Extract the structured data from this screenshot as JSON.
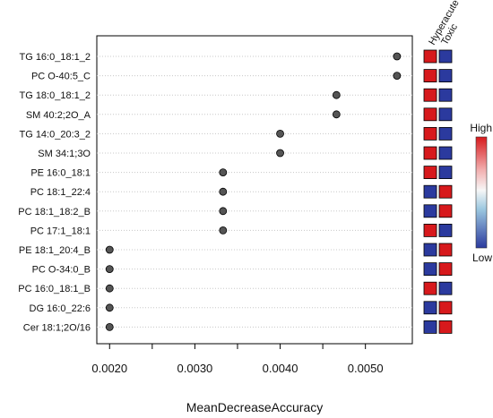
{
  "chart_data": {
    "type": "scatter",
    "subtype": "dot-plot-variable-importance",
    "xlabel": "MeanDecreaseAccuracy",
    "ylabel": "",
    "xlim": [
      0.00185,
      0.00555
    ],
    "x_ticks": [
      0.002,
      0.003,
      0.004,
      0.005
    ],
    "x_tick_labels": [
      "0.0020",
      "0.0030",
      "0.0040",
      "0.0050"
    ],
    "grid": "horizontal dashed lines per feature",
    "point_color": "#555555",
    "features": [
      {
        "label": "TG 16:0_18:1_2",
        "value": 0.00537
      },
      {
        "label": "PC O-40:5_C",
        "value": 0.00537
      },
      {
        "label": "TG 18:0_18:1_2",
        "value": 0.00466
      },
      {
        "label": "SM 40:2;2O_A",
        "value": 0.00466
      },
      {
        "label": "TG 14:0_20:3_2",
        "value": 0.004
      },
      {
        "label": "SM 34:1;3O",
        "value": 0.004
      },
      {
        "label": "PE 16:0_18:1",
        "value": 0.00333
      },
      {
        "label": "PC 18:1_22:4",
        "value": 0.00333
      },
      {
        "label": "PC 18:1_18:2_B",
        "value": 0.00333
      },
      {
        "label": "PC 17:1_18:1",
        "value": 0.00333
      },
      {
        "label": "PE 18:1_20:4_B",
        "value": 0.002
      },
      {
        "label": "PC O-34:0_B",
        "value": 0.002
      },
      {
        "label": "PC 16:0_18:1_B",
        "value": 0.002
      },
      {
        "label": "DG 16:0_22:6",
        "value": 0.002
      },
      {
        "label": "Cer 18:1;2O/16",
        "value": 0.002
      }
    ],
    "heatmap": {
      "columns": [
        "Hyperacute",
        "Toxic"
      ],
      "levels": [
        [
          "high",
          "low"
        ],
        [
          "high",
          "low"
        ],
        [
          "high",
          "low"
        ],
        [
          "high",
          "low"
        ],
        [
          "high",
          "low"
        ],
        [
          "high",
          "low"
        ],
        [
          "high",
          "low"
        ],
        [
          "low",
          "high"
        ],
        [
          "low",
          "high"
        ],
        [
          "high",
          "low"
        ],
        [
          "low",
          "high"
        ],
        [
          "low",
          "high"
        ],
        [
          "high",
          "low"
        ],
        [
          "low",
          "high"
        ],
        [
          "low",
          "high"
        ]
      ],
      "high_color": "#d7191c",
      "low_color": "#2b3a9e"
    },
    "colorbar": {
      "high_label": "High",
      "low_label": "Low",
      "stops": [
        "#d7191c",
        "#f5e1e1",
        "#e6f2f5",
        "#2c7bb6",
        "#2b3a9e"
      ]
    }
  }
}
